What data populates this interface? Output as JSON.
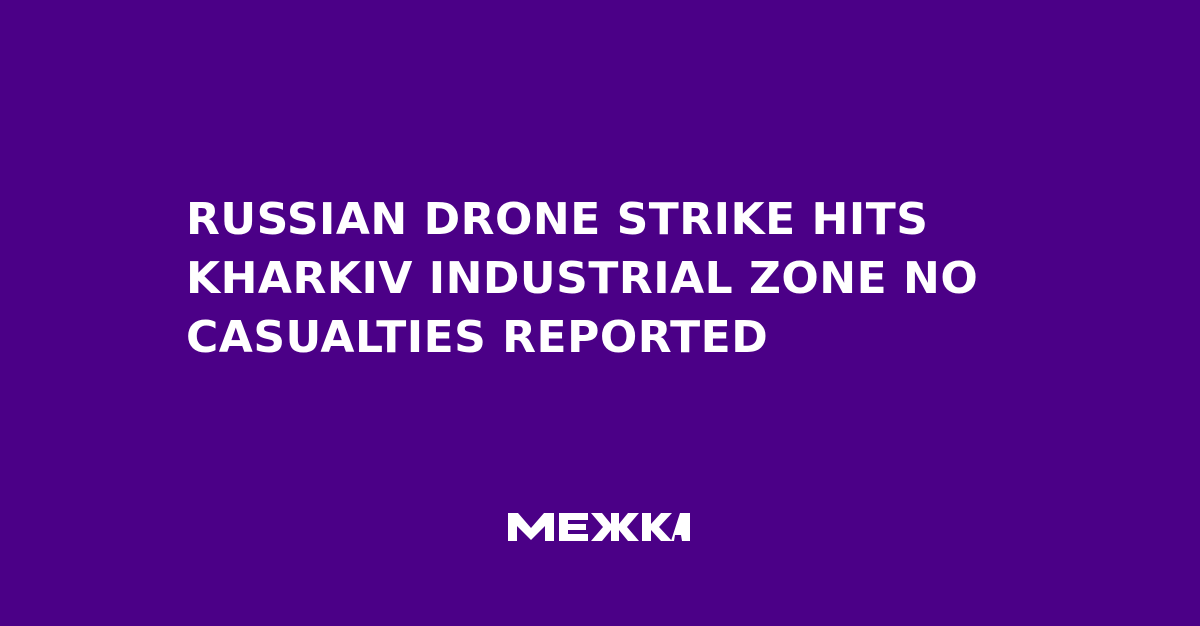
{
  "colors": {
    "background": "#4b0087",
    "text": "#ffffff"
  },
  "headline": {
    "lines": [
      "RUSSIAN DRONE STRIKE HITS",
      "KHARKIV INDUSTRIAL ZONE NO",
      "CASUALTIES REPORTED"
    ]
  },
  "logo": {
    "text": "МЕЖА"
  }
}
